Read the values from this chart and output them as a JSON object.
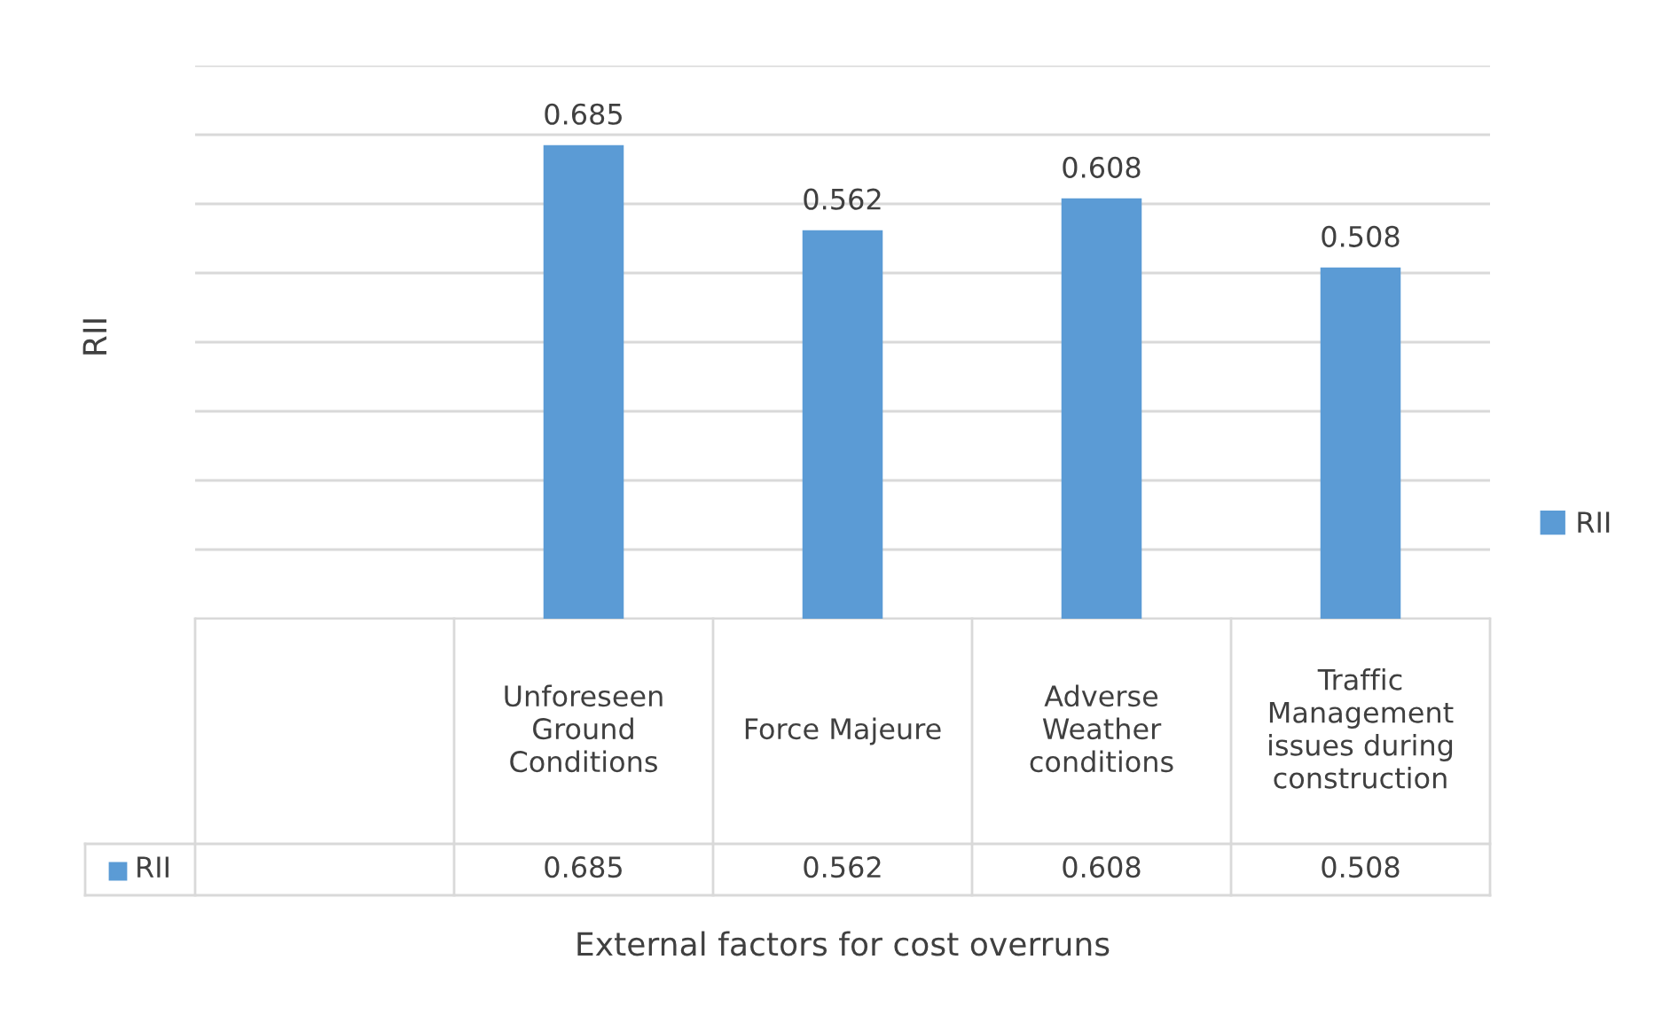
{
  "chart_data": {
    "type": "bar",
    "xlabel": "External factors for cost overruns",
    "ylabel": "RII",
    "categories": [
      null,
      "Unforeseen Ground Conditions",
      "Force Majeure",
      "Adverse Weather conditions",
      "Traffic Management issues during construction"
    ],
    "series": [
      {
        "name": "RII",
        "color": "#5b9bd5",
        "values": [
          null,
          0.685,
          0.562,
          0.608,
          0.508
        ],
        "value_labels": [
          null,
          "0.685",
          "0.562",
          "0.608",
          "0.508"
        ]
      }
    ],
    "ylim": [
      0,
      0.8
    ],
    "yticks": [
      {
        "value": 0,
        "label": null
      },
      {
        "value": 0.1,
        "label": null
      },
      {
        "value": 0.2,
        "label": null
      },
      {
        "value": 0.3,
        "label": null
      },
      {
        "value": 0.4,
        "label": null
      },
      {
        "value": 0.5,
        "label": null
      },
      {
        "value": 0.6,
        "label": null
      },
      {
        "value": 0.7,
        "label": null
      },
      {
        "value": 0.8,
        "label": null
      }
    ],
    "annotations": [
      "0.685",
      "0.562",
      "0.608",
      "0.508"
    ],
    "grid": "y",
    "legend": "right",
    "data_labels": true
  }
}
